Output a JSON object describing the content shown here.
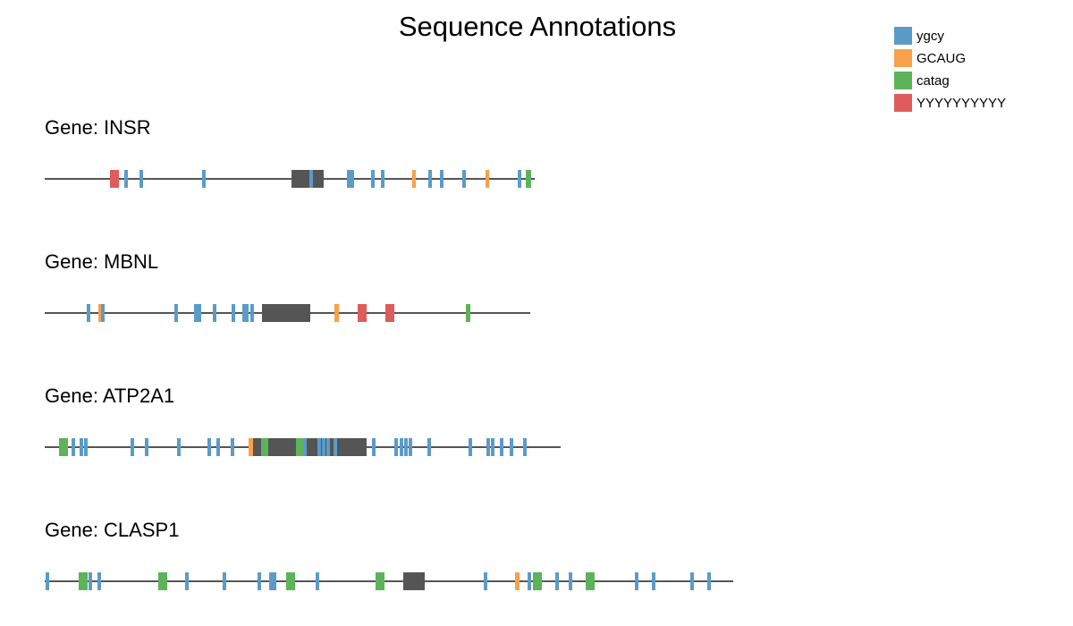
{
  "title": "Sequence Annotations",
  "colors": {
    "backbone": "#555555",
    "exon": "#555555"
  },
  "legend": [
    {
      "key": "ygcy",
      "label": "ygcy",
      "color": "#5b9bc8"
    },
    {
      "key": "GCAUG",
      "label": "GCAUG",
      "color": "#f9a04a"
    },
    {
      "key": "catag",
      "label": "catag",
      "color": "#5db35a"
    },
    {
      "key": "YYYYYYYYYY",
      "label": "YYYYYYYYYY",
      "color": "#e05b5b"
    }
  ],
  "genes": [
    {
      "name": "INSR",
      "label": "Gene: INSR",
      "length": 548,
      "exons": [
        {
          "start": 276,
          "end": 312
        }
      ],
      "features": [
        {
          "type": "YYYYYYYYYY",
          "start": 73,
          "end": 83
        },
        {
          "type": "ygcy",
          "start": 89,
          "end": 93
        },
        {
          "type": "ygcy",
          "start": 106,
          "end": 110
        },
        {
          "type": "ygcy",
          "start": 176,
          "end": 180
        },
        {
          "type": "ygcy",
          "start": 296,
          "end": 300
        },
        {
          "type": "ygcy",
          "start": 338,
          "end": 346
        },
        {
          "type": "ygcy",
          "start": 365,
          "end": 369
        },
        {
          "type": "ygcy",
          "start": 376,
          "end": 380
        },
        {
          "type": "GCAUG",
          "start": 411,
          "end": 415
        },
        {
          "type": "ygcy",
          "start": 429,
          "end": 433
        },
        {
          "type": "ygcy",
          "start": 442,
          "end": 446
        },
        {
          "type": "ygcy",
          "start": 467,
          "end": 471
        },
        {
          "type": "GCAUG",
          "start": 493,
          "end": 497
        },
        {
          "type": "ygcy",
          "start": 529,
          "end": 533
        },
        {
          "type": "catag",
          "start": 538,
          "end": 544
        }
      ]
    },
    {
      "name": "MBNL",
      "label": "Gene: MBNL",
      "length": 543,
      "exons": [
        {
          "start": 243,
          "end": 297
        }
      ],
      "features": [
        {
          "type": "ygcy",
          "start": 47,
          "end": 51
        },
        {
          "type": "GCAUG",
          "start": 60,
          "end": 64
        },
        {
          "type": "ygcy",
          "start": 63,
          "end": 67
        },
        {
          "type": "ygcy",
          "start": 145,
          "end": 149
        },
        {
          "type": "ygcy",
          "start": 167,
          "end": 175
        },
        {
          "type": "ygcy",
          "start": 188,
          "end": 192
        },
        {
          "type": "ygcy",
          "start": 209,
          "end": 213
        },
        {
          "type": "ygcy",
          "start": 221,
          "end": 228
        },
        {
          "type": "ygcy",
          "start": 230,
          "end": 234
        },
        {
          "type": "GCAUG",
          "start": 324,
          "end": 329
        },
        {
          "type": "YYYYYYYYYY",
          "start": 350,
          "end": 360
        },
        {
          "type": "YYYYYYYYYY",
          "start": 381,
          "end": 391
        },
        {
          "type": "catag",
          "start": 471,
          "end": 476
        }
      ]
    },
    {
      "name": "ATP2A1",
      "label": "Gene: ATP2A1",
      "length": 577,
      "exons": [
        {
          "start": 232,
          "end": 360
        }
      ],
      "features": [
        {
          "type": "catag",
          "start": 16,
          "end": 26
        },
        {
          "type": "ygcy",
          "start": 30,
          "end": 34
        },
        {
          "type": "ygcy",
          "start": 39,
          "end": 43
        },
        {
          "type": "ygcy",
          "start": 44,
          "end": 48
        },
        {
          "type": "ygcy",
          "start": 96,
          "end": 100
        },
        {
          "type": "ygcy",
          "start": 112,
          "end": 116
        },
        {
          "type": "ygcy",
          "start": 148,
          "end": 152
        },
        {
          "type": "ygcy",
          "start": 182,
          "end": 186
        },
        {
          "type": "ygcy",
          "start": 192,
          "end": 196
        },
        {
          "type": "ygcy",
          "start": 208,
          "end": 212
        },
        {
          "type": "GCAUG",
          "start": 228,
          "end": 233
        },
        {
          "type": "catag",
          "start": 242,
          "end": 250
        },
        {
          "type": "catag",
          "start": 281,
          "end": 289
        },
        {
          "type": "ygcy",
          "start": 289,
          "end": 293
        },
        {
          "type": "ygcy",
          "start": 305,
          "end": 309
        },
        {
          "type": "ygcy",
          "start": 310,
          "end": 314
        },
        {
          "type": "ygcy",
          "start": 315,
          "end": 319
        },
        {
          "type": "ygcy",
          "start": 323,
          "end": 327
        },
        {
          "type": "ygcy",
          "start": 366,
          "end": 370
        },
        {
          "type": "ygcy",
          "start": 391,
          "end": 395
        },
        {
          "type": "ygcy",
          "start": 397,
          "end": 401
        },
        {
          "type": "ygcy",
          "start": 402,
          "end": 406
        },
        {
          "type": "ygcy",
          "start": 407,
          "end": 411
        },
        {
          "type": "ygcy",
          "start": 428,
          "end": 432
        },
        {
          "type": "ygcy",
          "start": 474,
          "end": 478
        },
        {
          "type": "ygcy",
          "start": 494,
          "end": 498
        },
        {
          "type": "ygcy",
          "start": 499,
          "end": 503
        },
        {
          "type": "ygcy",
          "start": 509,
          "end": 513
        },
        {
          "type": "ygcy",
          "start": 520,
          "end": 524
        },
        {
          "type": "ygcy",
          "start": 535,
          "end": 539
        }
      ]
    },
    {
      "name": "CLASP1",
      "label": "Gene: CLASP1",
      "length": 770,
      "exons": [
        {
          "start": 401,
          "end": 425
        }
      ],
      "features": [
        {
          "type": "ygcy",
          "start": 1,
          "end": 5
        },
        {
          "type": "catag",
          "start": 38,
          "end": 48
        },
        {
          "type": "ygcy",
          "start": 49,
          "end": 53
        },
        {
          "type": "ygcy",
          "start": 59,
          "end": 63
        },
        {
          "type": "catag",
          "start": 127,
          "end": 137
        },
        {
          "type": "ygcy",
          "start": 157,
          "end": 161
        },
        {
          "type": "ygcy",
          "start": 199,
          "end": 203
        },
        {
          "type": "ygcy",
          "start": 238,
          "end": 242
        },
        {
          "type": "ygcy",
          "start": 251,
          "end": 255
        },
        {
          "type": "ygcy",
          "start": 255,
          "end": 259
        },
        {
          "type": "catag",
          "start": 270,
          "end": 280
        },
        {
          "type": "ygcy",
          "start": 303,
          "end": 307
        },
        {
          "type": "catag",
          "start": 370,
          "end": 380
        },
        {
          "type": "ygcy",
          "start": 491,
          "end": 495
        },
        {
          "type": "GCAUG",
          "start": 526,
          "end": 531
        },
        {
          "type": "ygcy",
          "start": 540,
          "end": 544
        },
        {
          "type": "catag",
          "start": 546,
          "end": 556
        },
        {
          "type": "ygcy",
          "start": 571,
          "end": 575
        },
        {
          "type": "ygcy",
          "start": 586,
          "end": 590
        },
        {
          "type": "catag",
          "start": 605,
          "end": 615
        },
        {
          "type": "ygcy",
          "start": 660,
          "end": 664
        },
        {
          "type": "ygcy",
          "start": 679,
          "end": 683
        },
        {
          "type": "ygcy",
          "start": 722,
          "end": 726
        },
        {
          "type": "ygcy",
          "start": 741,
          "end": 745
        }
      ]
    }
  ]
}
